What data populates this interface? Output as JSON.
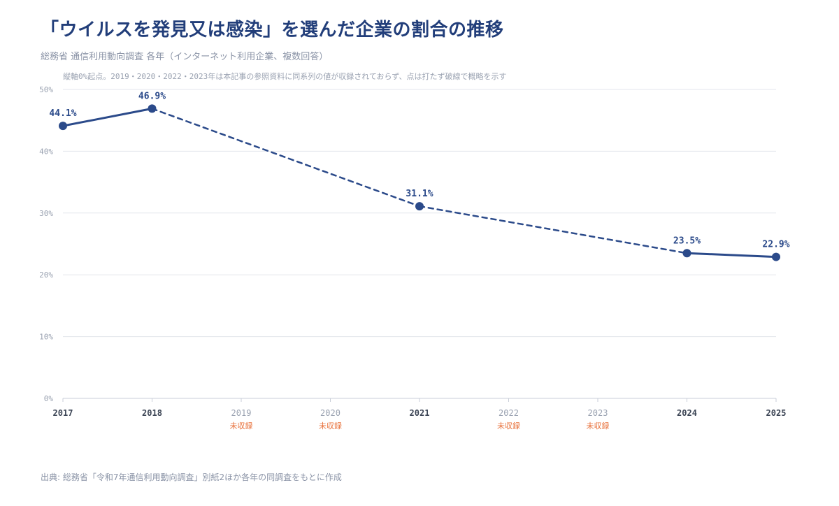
{
  "title": "「ウイルスを発見又は感染」を選んだ企業の割合の推移",
  "subtitle": "総務省 通信利用動向調査 各年（インターネット利用企業、複数回答）",
  "note": "縦軸0%起点。2019・2020・2022・2023年は本記事の参照資料に同系列の値が収録されておらず、点は打たず破線で概略を示す",
  "source": "出典: 総務省「令和7年通信利用動向調査」別紙2ほか各年の同調査をもとに作成",
  "colors": {
    "series": "#2b4a8a",
    "title": "#223e7a",
    "missing_label": "#e8703a",
    "grid": "#e3e6ec",
    "axis_text": "#9aa2b1",
    "year_text": "#3c4555"
  },
  "chart_data": {
    "type": "line",
    "x": [
      "2017",
      "2018",
      "2019",
      "2020",
      "2021",
      "2022",
      "2023",
      "2024",
      "2025"
    ],
    "series": [
      {
        "values": [
          44.1,
          46.9,
          null,
          null,
          31.1,
          null,
          null,
          23.5,
          22.9
        ]
      }
    ],
    "data_labels": [
      "44.1%",
      "46.9%",
      null,
      null,
      "31.1%",
      null,
      null,
      "23.5%",
      "22.9%"
    ],
    "missing_label": "未収録",
    "ylim": [
      0,
      50
    ],
    "yticks": [
      0,
      10,
      20,
      30,
      40,
      50
    ],
    "ytick_labels": [
      "0%",
      "10%",
      "20%",
      "30%",
      "40%",
      "50%"
    ],
    "grid": true,
    "gaps_drawn_as": "dashed"
  }
}
